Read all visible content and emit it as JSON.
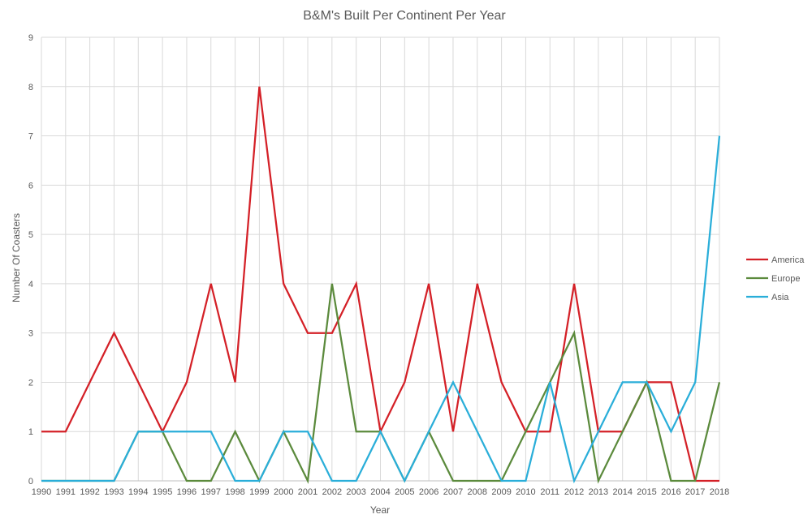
{
  "chart_data": {
    "type": "line",
    "title": "B&M's Built Per Continent Per Year",
    "xlabel": "Year",
    "ylabel": "Number Of Coasters",
    "ylim": [
      0,
      9
    ],
    "yticks": [
      0,
      1,
      2,
      3,
      4,
      5,
      6,
      7,
      8,
      9
    ],
    "grid": true,
    "legend_position": "right",
    "x": [
      "1990",
      "1991",
      "1992",
      "1993",
      "1994",
      "1995",
      "1996",
      "1997",
      "1998",
      "1999",
      "2000",
      "2001",
      "2002",
      "2003",
      "2004",
      "2005",
      "2006",
      "2007",
      "2008",
      "2009",
      "2010",
      "2011",
      "2012",
      "2013",
      "2014",
      "2015",
      "2016",
      "2017",
      "2018"
    ],
    "series": [
      {
        "name": "America",
        "color": "#d42027",
        "values": [
          1,
          1,
          2,
          3,
          2,
          1,
          2,
          4,
          2,
          8,
          4,
          3,
          3,
          4,
          1,
          2,
          4,
          1,
          4,
          2,
          1,
          1,
          4,
          1,
          1,
          2,
          2,
          0,
          0
        ]
      },
      {
        "name": "Europe",
        "color": "#5b8a3c",
        "values": [
          0,
          0,
          0,
          0,
          1,
          1,
          0,
          0,
          1,
          0,
          1,
          0,
          4,
          1,
          1,
          0,
          1,
          0,
          0,
          0,
          1,
          2,
          3,
          0,
          1,
          2,
          0,
          0,
          2
        ]
      },
      {
        "name": "Asia",
        "color": "#2aaed9",
        "values": [
          0,
          0,
          0,
          0,
          1,
          1,
          1,
          1,
          0,
          0,
          1,
          1,
          0,
          0,
          1,
          0,
          1,
          2,
          1,
          0,
          0,
          2,
          0,
          1,
          2,
          2,
          1,
          2,
          7
        ]
      }
    ]
  }
}
